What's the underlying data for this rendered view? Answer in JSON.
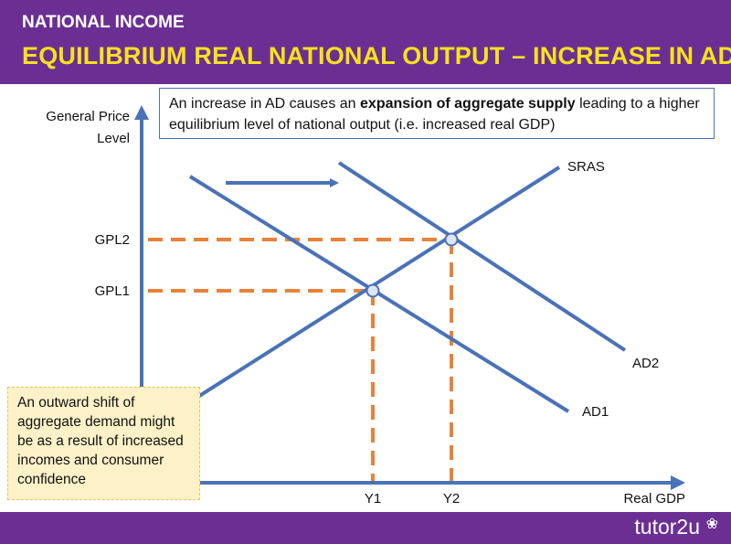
{
  "header": {
    "kicker": "NATIONAL INCOME",
    "title": "EQUILIBRIUM REAL NATIONAL OUTPUT – INCREASE IN AD"
  },
  "callout": {
    "text_before": "An increase in AD causes an ",
    "text_bold": "expansion of aggregate supply",
    "text_after": " leading to a higher equilibrium level of national output (i.e. increased real GDP)"
  },
  "note": {
    "text": "An outward shift of aggregate demand might be as a result of increased incomes and consumer confidence"
  },
  "diagram": {
    "y_axis_label_line1": "General Price",
    "y_axis_label_line2": "Level",
    "x_axis_label": "Real GDP",
    "price_levels": [
      "GPL2",
      "GPL1"
    ],
    "outputs": [
      "Y1",
      "Y2"
    ],
    "curves": {
      "sras": "SRAS",
      "ad1": "AD1",
      "ad2": "AD2"
    }
  },
  "colors": {
    "brand_purple": "#6b2f93",
    "title_yellow": "#f7e21b",
    "curve_blue": "#4a72b8",
    "dash_orange": "#e8823a",
    "note_fill": "#fdf1c8"
  },
  "footer": {
    "brand": "tutor2u",
    "brand_mark": "❀"
  }
}
